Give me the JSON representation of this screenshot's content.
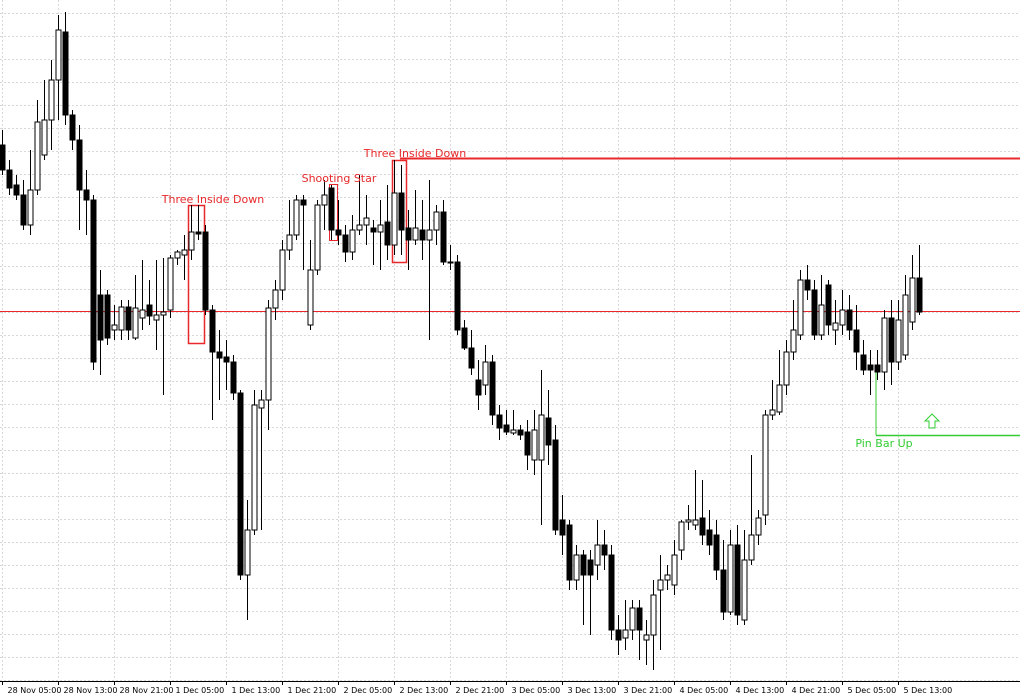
{
  "chart_data": {
    "type": "candlestick",
    "categories": [
      "28 Nov 05:00",
      null,
      null,
      null,
      null,
      null,
      null,
      null,
      "28 Nov 13:00",
      null,
      null,
      null,
      null,
      null,
      null,
      null,
      "28 Nov 21:00",
      null,
      null,
      null,
      null,
      null,
      null,
      null,
      "1 Dec 05:00",
      null,
      null,
      null,
      null,
      null,
      null,
      null,
      "1 Dec 13:00",
      null,
      null,
      null,
      null,
      null,
      null,
      null,
      "1 Dec 21:00",
      null,
      null,
      null,
      null,
      null,
      null,
      null,
      "2 Dec 05:00",
      null,
      null,
      null,
      null,
      null,
      null,
      null,
      "2 Dec 13:00",
      null,
      null,
      null,
      null,
      null,
      null,
      null,
      "2 Dec 21:00",
      null,
      null,
      null,
      null,
      null,
      null,
      null,
      "3 Dec 05:00",
      null,
      null,
      null,
      null,
      null,
      null,
      null,
      "3 Dec 13:00",
      null,
      null,
      null,
      null,
      null,
      null,
      null,
      "3 Dec 21:00",
      null,
      null,
      null,
      null,
      null,
      null,
      null,
      "4 Dec 05:00",
      null,
      null,
      null,
      null,
      null,
      null,
      null,
      "4 Dec 13:00",
      null,
      null,
      null,
      null,
      null,
      null,
      null,
      "4 Dec 21:00",
      null,
      null,
      null,
      null,
      null,
      null,
      null,
      "5 Dec 05:00",
      null,
      null,
      null,
      null,
      null,
      null,
      null,
      "5 Dec 13:00",
      null,
      null,
      null
    ],
    "open": [
      535,
      510,
      495,
      485,
      455,
      490,
      525,
      560,
      600,
      648,
      565,
      540,
      490,
      480,
      385,
      385,
      350,
      350,
      373,
      342,
      362,
      375,
      360,
      365,
      370,
      422,
      425,
      430,
      448,
      448,
      370,
      328,
      323,
      318,
      287,
      105,
      150,
      272,
      280,
      372,
      390,
      430,
      445,
      480,
      355,
      410,
      475,
      492,
      450,
      445,
      428,
      450,
      455,
      452,
      448,
      458,
      435,
      487,
      452,
      440,
      450,
      440,
      450,
      468,
      418,
      418,
      352,
      332,
      300,
      295,
      318,
      265,
      255,
      247,
      250,
      248,
      220,
      220,
      262,
      240,
      160,
      155,
      100,
      125,
      120,
      115,
      135,
      125,
      50,
      42,
      50,
      72,
      40,
      45,
      90,
      100,
      95,
      130,
      158,
      155,
      162,
      150,
      145,
      110,
      68,
      135,
      60,
      120,
      145,
      165,
      265,
      268,
      295,
      328,
      345,
      400,
      390,
      345,
      395,
      350,
      355,
      370,
      350,
      325,
      315,
      315,
      308,
      362,
      318,
      325,
      358,
      402
    ],
    "high": [
      550,
      520,
      505,
      500,
      530,
      580,
      600,
      620,
      665,
      668,
      570,
      555,
      510,
      485,
      410,
      390,
      375,
      380,
      380,
      405,
      420,
      400,
      420,
      422,
      425,
      430,
      445,
      475,
      475,
      455,
      375,
      350,
      340,
      325,
      290,
      180,
      290,
      290,
      380,
      400,
      440,
      480,
      485,
      485,
      440,
      480,
      500,
      495,
      480,
      455,
      465,
      505,
      485,
      460,
      480,
      495,
      520,
      515,
      470,
      490,
      480,
      500,
      475,
      480,
      435,
      425,
      360,
      350,
      320,
      335,
      325,
      275,
      270,
      270,
      255,
      260,
      270,
      310,
      290,
      255,
      185,
      160,
      135,
      130,
      130,
      160,
      150,
      135,
      65,
      80,
      80,
      80,
      60,
      100,
      125,
      115,
      140,
      160,
      175,
      210,
      200,
      170,
      160,
      140,
      150,
      155,
      150,
      225,
      170,
      270,
      300,
      330,
      340,
      380,
      410,
      415,
      400,
      405,
      400,
      380,
      390,
      385,
      375,
      340,
      330,
      330,
      370,
      380,
      380,
      405,
      425,
      435
    ],
    "low": [
      505,
      485,
      480,
      450,
      445,
      485,
      520,
      530,
      560,
      555,
      530,
      450,
      445,
      310,
      305,
      335,
      340,
      340,
      340,
      340,
      350,
      355,
      330,
      285,
      362,
      415,
      400,
      420,
      440,
      365,
      260,
      280,
      290,
      280,
      100,
      60,
      145,
      150,
      250,
      360,
      380,
      420,
      440,
      410,
      350,
      405,
      450,
      440,
      435,
      418,
      420,
      445,
      435,
      415,
      410,
      420,
      425,
      425,
      410,
      435,
      420,
      340,
      435,
      415,
      410,
      345,
      330,
      305,
      270,
      285,
      255,
      240,
      245,
      245,
      240,
      210,
      205,
      155,
      215,
      145,
      125,
      90,
      90,
      55,
      45,
      100,
      110,
      40,
      25,
      30,
      40,
      20,
      15,
      10,
      30,
      90,
      85,
      120,
      150,
      150,
      135,
      125,
      100,
      60,
      65,
      55,
      55,
      115,
      135,
      155,
      260,
      265,
      285,
      320,
      340,
      380,
      340,
      340,
      345,
      335,
      345,
      340,
      310,
      305,
      285,
      300,
      290,
      295,
      310,
      320,
      350,
      365
    ],
    "close": [
      510,
      492,
      485,
      455,
      490,
      558,
      560,
      600,
      650,
      565,
      540,
      490,
      480,
      318,
      340,
      342,
      355,
      373,
      350,
      372,
      370,
      364,
      365,
      368,
      422,
      428,
      430,
      448,
      446,
      370,
      328,
      322,
      318,
      287,
      105,
      150,
      275,
      280,
      372,
      390,
      430,
      445,
      480,
      475,
      410,
      475,
      485,
      450,
      445,
      428,
      450,
      455,
      462,
      448,
      455,
      435,
      487,
      450,
      440,
      452,
      440,
      450,
      468,
      418,
      417,
      350,
      332,
      312,
      285,
      318,
      265,
      252,
      248,
      250,
      245,
      225,
      250,
      265,
      235,
      150,
      145,
      100,
      125,
      105,
      105,
      135,
      125,
      50,
      40,
      50,
      72,
      50,
      45,
      85,
      100,
      105,
      125,
      158,
      160,
      160,
      145,
      135,
      110,
      68,
      135,
      65,
      120,
      145,
      162,
      265,
      270,
      295,
      328,
      350,
      400,
      390,
      345,
      375,
      355,
      357,
      370,
      350,
      328,
      310,
      310,
      308,
      362,
      318,
      360,
      385,
      402,
      368
    ],
    "up_color": "#ffffff",
    "down_color": "#000000",
    "wick_color": "#000000",
    "ylim": [
      0,
      680
    ],
    "yticks": [
      0,
      23,
      46,
      69,
      92,
      115,
      138,
      161,
      184,
      207,
      230,
      253,
      276,
      299,
      322,
      345,
      368,
      391,
      414,
      437,
      460,
      483,
      506,
      529,
      552,
      575,
      598,
      621,
      644,
      667
    ],
    "grid": true,
    "levels": [
      {
        "value": 369,
        "color": "#e8282a"
      },
      {
        "value": 522,
        "color": "#e8282a"
      },
      {
        "value": 245,
        "color": "#32cd32"
      }
    ],
    "annotations": [
      {
        "text": "Three Inside Down",
        "color": "#e8282a"
      },
      {
        "text": "Shooting Star",
        "color": "#e8282a"
      },
      {
        "text": "Three Inside Down",
        "color": "#e8282a"
      },
      {
        "text": "Pin Bar Up",
        "color": "#32cd32"
      }
    ]
  }
}
